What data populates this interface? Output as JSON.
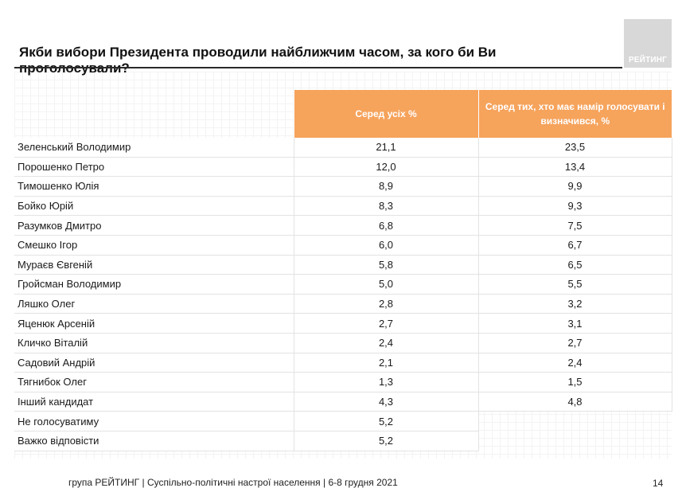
{
  "title": "Якби вибори Президента проводили найближчим часом, за кого би Ви проголосували?",
  "logo_text": "РЕЙТИНГ",
  "table": {
    "headers": [
      "Серед усіх %",
      "Серед тих, хто має намір голосувати і визначився, %"
    ],
    "rows": [
      {
        "name": "Зеленський Володимир",
        "all": "21,1",
        "decided": "23,5"
      },
      {
        "name": "Порошенко Петро",
        "all": "12,0",
        "decided": "13,4"
      },
      {
        "name": "Тимошенко Юлія",
        "all": "8,9",
        "decided": "9,9"
      },
      {
        "name": "Бойко Юрій",
        "all": "8,3",
        "decided": "9,3"
      },
      {
        "name": "Разумков Дмитро",
        "all": "6,8",
        "decided": "7,5"
      },
      {
        "name": "Смешко Ігор",
        "all": "6,0",
        "decided": "6,7"
      },
      {
        "name": "Мураєв Євгеній",
        "all": "5,8",
        "decided": "6,5"
      },
      {
        "name": "Гройсман Володимир",
        "all": "5,0",
        "decided": "5,5"
      },
      {
        "name": "Ляшко Олег",
        "all": "2,8",
        "decided": "3,2"
      },
      {
        "name": "Яценюк Арсеній",
        "all": "2,7",
        "decided": "3,1"
      },
      {
        "name": "Кличко Віталій",
        "all": "2,4",
        "decided": "2,7"
      },
      {
        "name": "Садовий Андрій",
        "all": "2,1",
        "decided": "2,4"
      },
      {
        "name": "Тягнибок Олег",
        "all": "1,3",
        "decided": "1,5"
      },
      {
        "name": "Інший кандидат",
        "all": "4,3",
        "decided": "4,8"
      },
      {
        "name": "Не голосуватиму",
        "all": "5,2",
        "decided": ""
      },
      {
        "name": "Важко відповісти",
        "all": "5,2",
        "decided": ""
      }
    ]
  },
  "footer": "група РЕЙТИНГ | Суспільно-політичні настрої населення  | 6-8 грудня 2021",
  "page_number": "14",
  "colors": {
    "header_orange": "#f6a35c",
    "logo_gray": "#d8d8d8"
  }
}
